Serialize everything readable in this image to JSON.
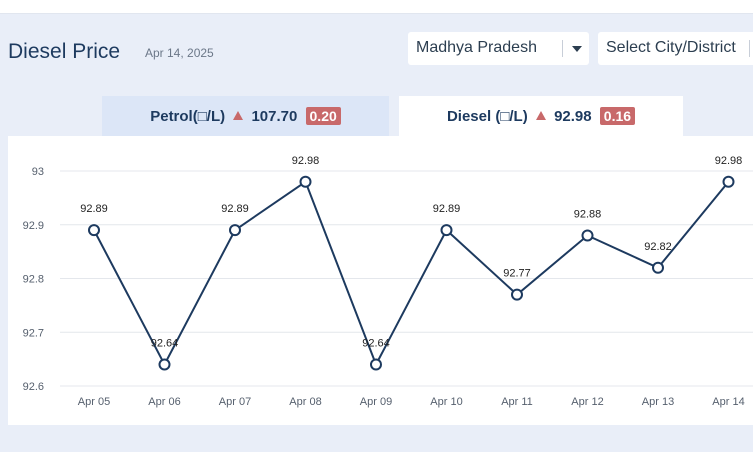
{
  "header": {
    "title": "Diesel Price",
    "date": "Apr 14, 2025",
    "state_select": "Madhya Pradesh",
    "city_select": "Select City/District"
  },
  "tabs": {
    "petrol": {
      "label": "Petrol(□/L)",
      "price": "107.70",
      "change": "0.20"
    },
    "diesel": {
      "label": "Diesel (□/L)",
      "price": "92.98",
      "change": "0.16"
    }
  },
  "colors": {
    "line": "#1d3a5f",
    "up_badge": "#c8696a",
    "grid": "#e4e7ec",
    "active_tab": "#ffffff",
    "inactive_tab": "#dce6f7"
  },
  "chart_data": {
    "type": "line",
    "categories": [
      "Apr 05",
      "Apr 06",
      "Apr 07",
      "Apr 08",
      "Apr 09",
      "Apr 10",
      "Apr 11",
      "Apr 12",
      "Apr 13",
      "Apr 14"
    ],
    "values": [
      92.89,
      92.64,
      92.89,
      92.98,
      92.64,
      92.89,
      92.77,
      92.88,
      92.82,
      92.98
    ],
    "ylim": [
      92.6,
      93
    ],
    "yticks": [
      92.6,
      92.7,
      92.8,
      92.9,
      93
    ],
    "ytick_labels": [
      "92.6",
      "92.7",
      "92.8",
      "92.9",
      "93"
    ],
    "data_labels": true,
    "grid": true,
    "title": "",
    "xlabel": "",
    "ylabel": ""
  }
}
